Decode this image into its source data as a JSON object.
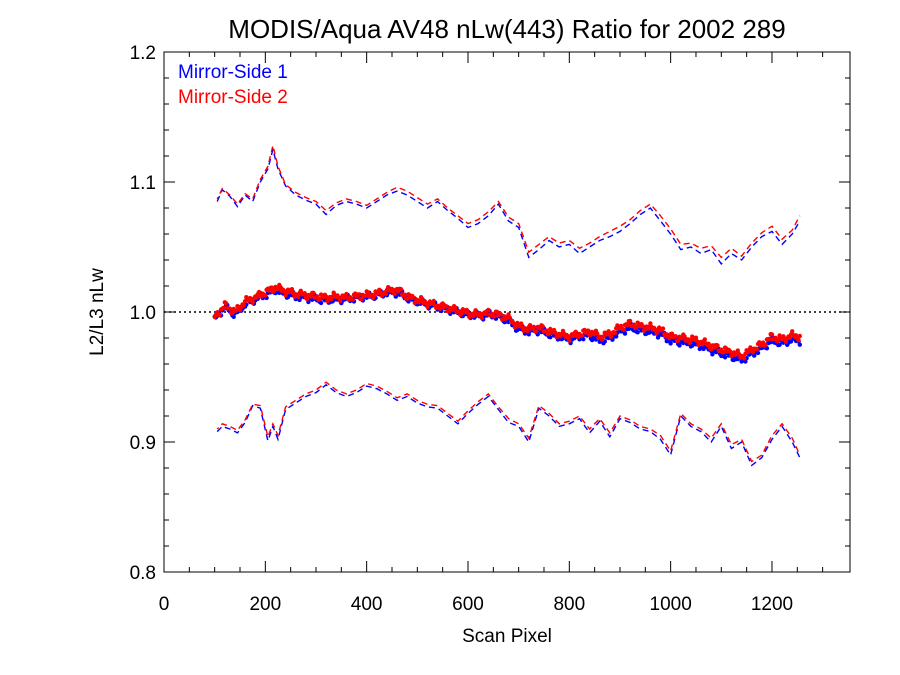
{
  "chart_data": {
    "type": "line",
    "title": "MODIS/Aqua AV48 nLw(443) Ratio for 2002 289",
    "xlabel": "Scan Pixel",
    "ylabel": "L2/L3 nLw",
    "xlim": [
      0,
      1354
    ],
    "ylim": [
      0.8,
      1.2
    ],
    "xticks": [
      0,
      200,
      400,
      600,
      800,
      1000,
      1200
    ],
    "yticks": [
      0.8,
      0.9,
      1.0,
      1.1,
      1.2
    ],
    "xtick_labels": [
      "0",
      "200",
      "400",
      "600",
      "800",
      "1000",
      "1200"
    ],
    "ytick_labels": [
      "0.8",
      "0.9",
      "1.0",
      "1.1",
      "1.2"
    ],
    "reference_line": 1.0,
    "legend": {
      "position": "top-left",
      "entries": [
        {
          "label": "Mirror-Side 1",
          "color": "#0000ff"
        },
        {
          "label": "Mirror-Side 2",
          "color": "#ff0000"
        }
      ]
    },
    "series": [
      {
        "name": "Mirror-Side 1",
        "color": "#0000ff",
        "mean": {
          "x": [
            100,
            120,
            140,
            160,
            180,
            200,
            220,
            240,
            260,
            280,
            300,
            320,
            340,
            360,
            380,
            400,
            420,
            440,
            460,
            480,
            500,
            520,
            540,
            560,
            580,
            600,
            620,
            640,
            660,
            680,
            700,
            720,
            740,
            760,
            780,
            800,
            820,
            840,
            860,
            880,
            900,
            920,
            940,
            960,
            980,
            1000,
            1020,
            1040,
            1060,
            1080,
            1100,
            1120,
            1140,
            1160,
            1180,
            1200,
            1220,
            1240,
            1255
          ],
          "y": [
            0.994,
            1.004,
            0.998,
            1.006,
            1.01,
            1.013,
            1.017,
            1.014,
            1.012,
            1.011,
            1.01,
            1.009,
            1.01,
            1.01,
            1.011,
            1.012,
            1.013,
            1.015,
            1.015,
            1.011,
            1.008,
            1.006,
            1.004,
            1.002,
            1.0,
            0.998,
            0.997,
            0.998,
            0.997,
            0.993,
            0.987,
            0.985,
            0.986,
            0.983,
            0.981,
            0.979,
            0.981,
            0.982,
            0.978,
            0.98,
            0.985,
            0.988,
            0.986,
            0.985,
            0.983,
            0.978,
            0.977,
            0.976,
            0.974,
            0.971,
            0.968,
            0.966,
            0.963,
            0.968,
            0.972,
            0.978,
            0.976,
            0.979,
            0.978
          ]
        },
        "upper": {
          "x": [
            105,
            115,
            130,
            145,
            160,
            175,
            190,
            205,
            215,
            225,
            240,
            260,
            280,
            300,
            320,
            340,
            360,
            380,
            400,
            420,
            440,
            460,
            480,
            500,
            520,
            540,
            560,
            580,
            600,
            620,
            640,
            660,
            680,
            700,
            720,
            740,
            760,
            780,
            800,
            820,
            840,
            860,
            880,
            900,
            920,
            940,
            960,
            980,
            1000,
            1020,
            1040,
            1060,
            1080,
            1100,
            1120,
            1140,
            1160,
            1180,
            1200,
            1220,
            1240,
            1255
          ],
          "y": [
            1.085,
            1.094,
            1.089,
            1.081,
            1.09,
            1.085,
            1.1,
            1.11,
            1.125,
            1.11,
            1.097,
            1.09,
            1.086,
            1.083,
            1.075,
            1.082,
            1.085,
            1.083,
            1.08,
            1.085,
            1.09,
            1.093,
            1.09,
            1.085,
            1.08,
            1.085,
            1.078,
            1.072,
            1.065,
            1.068,
            1.074,
            1.083,
            1.07,
            1.065,
            1.042,
            1.048,
            1.055,
            1.05,
            1.052,
            1.045,
            1.05,
            1.055,
            1.058,
            1.062,
            1.068,
            1.075,
            1.08,
            1.07,
            1.06,
            1.048,
            1.05,
            1.045,
            1.048,
            1.037,
            1.045,
            1.04,
            1.05,
            1.058,
            1.062,
            1.052,
            1.06,
            1.07
          ]
        },
        "lower": {
          "x": [
            105,
            115,
            130,
            145,
            160,
            175,
            190,
            205,
            215,
            225,
            240,
            260,
            280,
            300,
            320,
            340,
            360,
            380,
            400,
            420,
            440,
            460,
            480,
            500,
            520,
            540,
            560,
            580,
            600,
            620,
            640,
            660,
            680,
            700,
            720,
            740,
            760,
            780,
            800,
            820,
            840,
            860,
            880,
            900,
            920,
            940,
            960,
            980,
            1000,
            1020,
            1040,
            1060,
            1080,
            1100,
            1120,
            1140,
            1160,
            1180,
            1200,
            1220,
            1240,
            1255
          ],
          "y": [
            0.908,
            0.912,
            0.91,
            0.907,
            0.915,
            0.928,
            0.926,
            0.901,
            0.912,
            0.902,
            0.925,
            0.93,
            0.935,
            0.938,
            0.944,
            0.938,
            0.935,
            0.938,
            0.943,
            0.941,
            0.937,
            0.932,
            0.935,
            0.93,
            0.927,
            0.926,
            0.92,
            0.914,
            0.922,
            0.929,
            0.935,
            0.925,
            0.915,
            0.912,
            0.9,
            0.926,
            0.92,
            0.912,
            0.914,
            0.918,
            0.907,
            0.916,
            0.904,
            0.918,
            0.915,
            0.91,
            0.908,
            0.902,
            0.89,
            0.92,
            0.912,
            0.908,
            0.9,
            0.912,
            0.895,
            0.9,
            0.882,
            0.888,
            0.902,
            0.912,
            0.9,
            0.888
          ]
        }
      },
      {
        "name": "Mirror-Side 2",
        "color": "#ff0000",
        "mean": {
          "x": [
            100,
            120,
            140,
            160,
            180,
            200,
            220,
            240,
            260,
            280,
            300,
            320,
            340,
            360,
            380,
            400,
            420,
            440,
            460,
            480,
            500,
            520,
            540,
            560,
            580,
            600,
            620,
            640,
            660,
            680,
            700,
            720,
            740,
            760,
            780,
            800,
            820,
            840,
            860,
            880,
            900,
            920,
            940,
            960,
            980,
            1000,
            1020,
            1040,
            1060,
            1080,
            1100,
            1120,
            1140,
            1160,
            1180,
            1200,
            1220,
            1240,
            1255
          ],
          "y": [
            0.996,
            1.005,
            1.0,
            1.008,
            1.011,
            1.015,
            1.019,
            1.016,
            1.014,
            1.013,
            1.012,
            1.011,
            1.012,
            1.011,
            1.012,
            1.013,
            1.014,
            1.016,
            1.017,
            1.012,
            1.009,
            1.007,
            1.005,
            1.003,
            1.001,
            0.999,
            0.998,
            0.999,
            0.998,
            0.995,
            0.989,
            0.987,
            0.988,
            0.985,
            0.983,
            0.981,
            0.983,
            0.985,
            0.981,
            0.983,
            0.988,
            0.991,
            0.989,
            0.988,
            0.986,
            0.981,
            0.98,
            0.979,
            0.977,
            0.974,
            0.971,
            0.969,
            0.966,
            0.971,
            0.975,
            0.981,
            0.979,
            0.982,
            0.981
          ]
        },
        "upper": {
          "x": [
            105,
            115,
            130,
            145,
            160,
            175,
            190,
            205,
            215,
            225,
            240,
            260,
            280,
            300,
            320,
            340,
            360,
            380,
            400,
            420,
            440,
            460,
            480,
            500,
            520,
            540,
            560,
            580,
            600,
            620,
            640,
            660,
            680,
            700,
            720,
            740,
            760,
            780,
            800,
            820,
            840,
            860,
            880,
            900,
            920,
            940,
            960,
            980,
            1000,
            1020,
            1040,
            1060,
            1080,
            1100,
            1120,
            1140,
            1160,
            1180,
            1200,
            1220,
            1240,
            1255
          ],
          "y": [
            1.087,
            1.095,
            1.09,
            1.083,
            1.091,
            1.087,
            1.102,
            1.112,
            1.128,
            1.112,
            1.098,
            1.092,
            1.088,
            1.085,
            1.078,
            1.084,
            1.087,
            1.085,
            1.082,
            1.087,
            1.092,
            1.096,
            1.093,
            1.088,
            1.083,
            1.087,
            1.08,
            1.074,
            1.068,
            1.071,
            1.077,
            1.085,
            1.073,
            1.068,
            1.046,
            1.052,
            1.058,
            1.053,
            1.055,
            1.049,
            1.053,
            1.058,
            1.062,
            1.066,
            1.071,
            1.078,
            1.083,
            1.074,
            1.064,
            1.052,
            1.053,
            1.049,
            1.051,
            1.042,
            1.049,
            1.043,
            1.053,
            1.061,
            1.066,
            1.056,
            1.063,
            1.074
          ]
        },
        "lower": {
          "x": [
            105,
            115,
            130,
            145,
            160,
            175,
            190,
            205,
            215,
            225,
            240,
            260,
            280,
            300,
            320,
            340,
            360,
            380,
            400,
            420,
            440,
            460,
            480,
            500,
            520,
            540,
            560,
            580,
            600,
            620,
            640,
            660,
            680,
            700,
            720,
            740,
            760,
            780,
            800,
            820,
            840,
            860,
            880,
            900,
            920,
            940,
            960,
            980,
            1000,
            1020,
            1040,
            1060,
            1080,
            1100,
            1120,
            1140,
            1160,
            1180,
            1200,
            1220,
            1240,
            1255
          ],
          "y": [
            0.91,
            0.914,
            0.912,
            0.909,
            0.917,
            0.929,
            0.928,
            0.904,
            0.914,
            0.905,
            0.927,
            0.932,
            0.937,
            0.94,
            0.946,
            0.94,
            0.937,
            0.94,
            0.945,
            0.943,
            0.939,
            0.934,
            0.937,
            0.932,
            0.929,
            0.928,
            0.922,
            0.916,
            0.924,
            0.931,
            0.937,
            0.927,
            0.918,
            0.914,
            0.903,
            0.928,
            0.922,
            0.914,
            0.916,
            0.92,
            0.91,
            0.918,
            0.907,
            0.92,
            0.917,
            0.912,
            0.91,
            0.905,
            0.893,
            0.922,
            0.914,
            0.91,
            0.903,
            0.914,
            0.898,
            0.902,
            0.885,
            0.89,
            0.905,
            0.914,
            0.903,
            0.89
          ]
        }
      }
    ]
  }
}
